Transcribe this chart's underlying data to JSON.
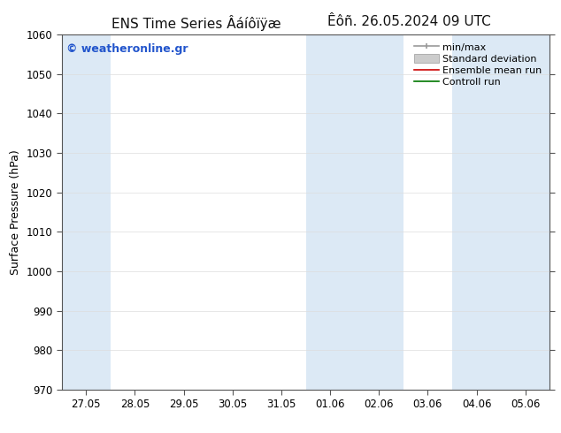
{
  "title_left": "ENS Time Series Âáíôïÿæ",
  "title_right": "Êôñ. 26.05.2024 09 UTC",
  "ylabel": "Surface Pressure (hPa)",
  "ylim": [
    970,
    1060
  ],
  "yticks": [
    970,
    980,
    990,
    1000,
    1010,
    1020,
    1030,
    1040,
    1050,
    1060
  ],
  "xtick_labels": [
    "27.05",
    "28.05",
    "29.05",
    "30.05",
    "31.05",
    "01.06",
    "02.06",
    "03.06",
    "04.06",
    "05.06"
  ],
  "xtick_positions": [
    0,
    1,
    2,
    3,
    4,
    5,
    6,
    7,
    8,
    9
  ],
  "xlim": [
    -0.5,
    9.5
  ],
  "shaded_bands": [
    {
      "x_start": -0.5,
      "x_end": 0.5,
      "color": "#dce9f5"
    },
    {
      "x_start": 4.5,
      "x_end": 5.5,
      "color": "#dce9f5"
    },
    {
      "x_start": 5.5,
      "x_end": 6.5,
      "color": "#dce9f5"
    },
    {
      "x_start": 7.5,
      "x_end": 8.5,
      "color": "#dce9f5"
    },
    {
      "x_start": 8.5,
      "x_end": 9.5,
      "color": "#dce9f5"
    }
  ],
  "watermark": "© weatheronline.gr",
  "watermark_color": "#2255cc",
  "bg_color": "#ffffff",
  "plot_bg_color": "#ffffff",
  "title_fontsize": 11,
  "axis_label_fontsize": 9,
  "tick_fontsize": 8.5,
  "legend_fontsize": 8,
  "spine_color": "#555555",
  "tick_color": "#555555",
  "grid_color": "#dddddd",
  "legend_labels": [
    "min/max",
    "Standard deviation",
    "Ensemble mean run",
    "Controll run"
  ],
  "legend_line_colors": [
    "#999999",
    "#cccccc",
    "#cc0000",
    "#007700"
  ]
}
